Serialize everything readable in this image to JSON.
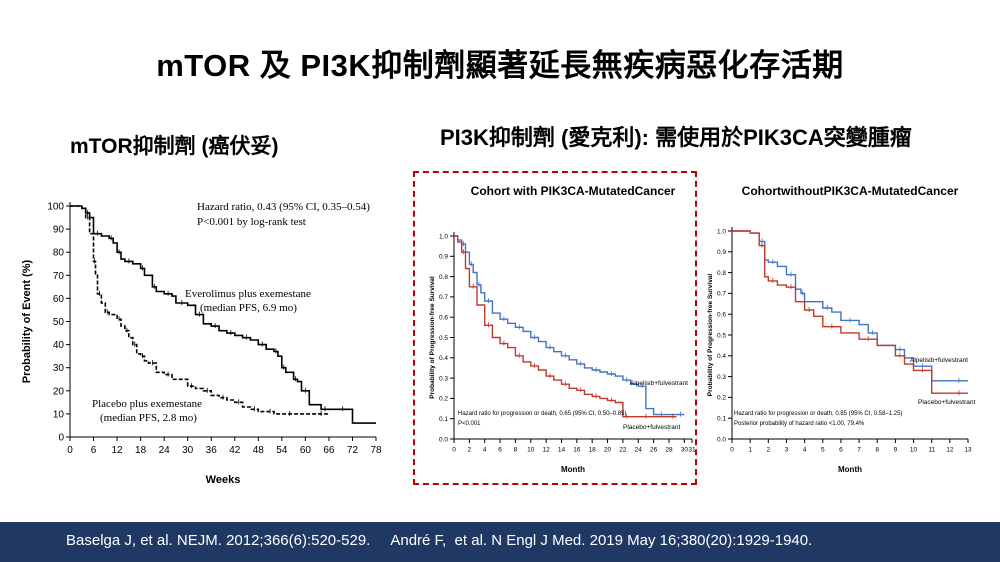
{
  "slide": {
    "title": "mTOR 及 PI3K抑制劑顯著延長無疾病惡化存活期",
    "left_subtitle": "mTOR抑制劑 (癌伏妥)",
    "right_subtitle": "PI3K抑制劑 (愛克利): 需使用於PIK3CA突變腫瘤",
    "footer": "Baselga J, et al. NEJM. 2012;366(6):520-529.     André F,  et al. N Engl J Med. 2019 May 16;380(20):1929-1940.",
    "accent_colors": {
      "footer_bg": "#1f3864",
      "highlight_box": "#c00000"
    }
  },
  "chart_data": [
    {
      "type": "line",
      "title": "",
      "xlabel": "Weeks",
      "ylabel": "Probability of Event (%)",
      "xlim": [
        0,
        78
      ],
      "ylim": [
        0,
        100
      ],
      "x_ticks": [
        "0",
        "6",
        "12",
        "18",
        "24",
        "30",
        "36",
        "42",
        "48",
        "54",
        "60",
        "66",
        "72",
        "78"
      ],
      "y_ticks": [
        "0",
        "10",
        "20",
        "30",
        "40",
        "50",
        "60",
        "70",
        "80",
        "90",
        "100"
      ],
      "annotation": [
        "Hazard ratio, 0.43 (95% CI, 0.35–0.54)",
        "P<0.001 by log-rank test"
      ],
      "series": [
        {
          "name": "Everolimus plus exemestane",
          "name_sub": "(median PFS, 6.9 mo)",
          "color": "#000000",
          "dashed": false,
          "x": [
            0,
            3,
            4,
            5,
            6,
            8,
            10,
            11,
            12,
            13,
            14,
            16,
            18,
            19,
            21,
            22,
            24,
            26,
            27,
            30,
            32,
            34,
            36,
            38,
            40,
            42,
            44,
            46,
            48,
            50,
            52,
            53,
            54,
            55,
            57,
            58,
            59,
            61,
            64,
            66,
            67,
            72,
            78
          ],
          "y": [
            100,
            99,
            97,
            95,
            88,
            87,
            86,
            84,
            80,
            77,
            76,
            75,
            73,
            70,
            65,
            63,
            62,
            61,
            58,
            57,
            53,
            49,
            48,
            46,
            45,
            44,
            43,
            42,
            40,
            38,
            37,
            35,
            30,
            28,
            25,
            24,
            20,
            14,
            12,
            12,
            12,
            6,
            6
          ]
        },
        {
          "name": "Placebo plus exemestane",
          "name_sub": "(median PFS, 2.8 mo)",
          "color": "#000000",
          "dashed": true,
          "x": [
            0,
            3,
            4,
            5,
            6,
            6.5,
            7,
            8,
            9,
            10,
            12,
            13,
            14,
            15,
            16,
            17,
            18,
            19,
            20,
            22,
            24,
            26,
            30,
            32,
            34,
            36,
            38,
            40,
            42,
            44,
            46,
            48,
            50,
            52,
            54,
            58,
            62,
            66
          ],
          "y": [
            100,
            99,
            95,
            88,
            76,
            70,
            62,
            58,
            54,
            53,
            51,
            48,
            46,
            43,
            40,
            36,
            35,
            33,
            32,
            28,
            27,
            25,
            22,
            21,
            20,
            18,
            17,
            16,
            15,
            13,
            12,
            11,
            11,
            10,
            10,
            10,
            10,
            10
          ]
        }
      ]
    },
    {
      "type": "line",
      "title": "Cohort with PIK3CA-MutatedCancer",
      "xlabel": "Month",
      "ylabel": "Probability of Progression-free Survival",
      "xlim": [
        0,
        31
      ],
      "ylim": [
        0,
        1.0
      ],
      "x_ticks": [
        "0",
        "2",
        "4",
        "6",
        "8",
        "10",
        "12",
        "14",
        "16",
        "18",
        "20",
        "22",
        "24",
        "26",
        "28",
        "30",
        "31"
      ],
      "y_ticks": [
        "0.0",
        "0.1",
        "0.2",
        "0.3",
        "0.4",
        "0.5",
        "0.6",
        "0.7",
        "0.8",
        "0.9",
        "1.0"
      ],
      "annotation": [
        "Hazard ratio for progression or death, 0.65 (95% CI, 0.50–0.85)",
        "P<0.001"
      ],
      "series": [
        {
          "name": "Alpelisib+fulvestrant",
          "color": "#4472c4",
          "x": [
            0,
            0.5,
            1,
            1.5,
            2,
            2.5,
            3,
            3.5,
            4,
            5,
            6,
            7,
            8,
            9,
            10,
            11,
            12,
            13,
            14,
            15,
            16,
            17,
            18,
            19,
            20,
            21,
            22,
            23,
            24,
            25,
            26,
            28,
            29,
            30
          ],
          "y": [
            1.0,
            0.98,
            0.96,
            0.92,
            0.86,
            0.82,
            0.76,
            0.72,
            0.68,
            0.62,
            0.59,
            0.57,
            0.55,
            0.53,
            0.5,
            0.48,
            0.45,
            0.43,
            0.41,
            0.39,
            0.37,
            0.35,
            0.34,
            0.33,
            0.32,
            0.31,
            0.29,
            0.27,
            0.26,
            0.15,
            0.12,
            0.12,
            0.12,
            0.12
          ]
        },
        {
          "name": "Placebo+fulvestrant",
          "color": "#c0392b",
          "x": [
            0,
            0.5,
            1,
            1.5,
            2,
            3,
            4,
            5,
            6,
            7,
            8,
            9,
            10,
            11,
            12,
            13,
            14,
            15,
            16,
            17,
            18,
            19,
            20,
            21,
            22,
            23,
            24,
            26,
            28,
            29
          ],
          "y": [
            1.0,
            0.97,
            0.92,
            0.84,
            0.75,
            0.66,
            0.56,
            0.5,
            0.47,
            0.45,
            0.41,
            0.38,
            0.36,
            0.34,
            0.31,
            0.29,
            0.27,
            0.25,
            0.24,
            0.22,
            0.21,
            0.2,
            0.19,
            0.18,
            0.11,
            0.11,
            0.11,
            0.11,
            0.11,
            0.11
          ]
        }
      ]
    },
    {
      "type": "line",
      "title": "CohortwithoutPIK3CA-MutatedCancer",
      "xlabel": "Month",
      "ylabel": "Probability of Progression-free Survival",
      "xlim": [
        0,
        13
      ],
      "ylim": [
        0,
        1.0
      ],
      "x_ticks": [
        "0",
        "1",
        "2",
        "3",
        "4",
        "5",
        "6",
        "7",
        "8",
        "9",
        "10",
        "11",
        "12",
        "13"
      ],
      "y_ticks": [
        "0.0",
        "0.1",
        "0.2",
        "0.3",
        "0.4",
        "0.5",
        "0.6",
        "0.7",
        "0.8",
        "0.9",
        "1.0"
      ],
      "annotation": [
        "Hazard ratio for progression or death, 0.85 (95% CI, 0.58–1.25)",
        "Posterior probability of hazard ratio <1.00, 79.4%"
      ],
      "series": [
        {
          "name": "Alpelisib+fulvestrant",
          "color": "#4472c4",
          "x": [
            0,
            1,
            1.5,
            1.8,
            2,
            2.5,
            3,
            3.5,
            3.8,
            4,
            5,
            5.5,
            6,
            7,
            7.5,
            8,
            9,
            9.5,
            10,
            11,
            12,
            13
          ],
          "y": [
            1.0,
            0.99,
            0.95,
            0.86,
            0.85,
            0.83,
            0.79,
            0.72,
            0.7,
            0.66,
            0.63,
            0.61,
            0.57,
            0.55,
            0.51,
            0.45,
            0.43,
            0.39,
            0.35,
            0.28,
            0.28,
            0.28
          ]
        },
        {
          "name": "Placebo+fulvestrant",
          "color": "#c0392b",
          "x": [
            0,
            1,
            1.5,
            1.8,
            2,
            2.5,
            3,
            3.5,
            4,
            4.5,
            5,
            6,
            7,
            8,
            9,
            9.5,
            10,
            11,
            12,
            13
          ],
          "y": [
            1.0,
            0.99,
            0.93,
            0.78,
            0.76,
            0.74,
            0.73,
            0.66,
            0.62,
            0.59,
            0.54,
            0.51,
            0.48,
            0.45,
            0.4,
            0.36,
            0.33,
            0.22,
            0.22,
            0.22
          ]
        }
      ]
    }
  ]
}
